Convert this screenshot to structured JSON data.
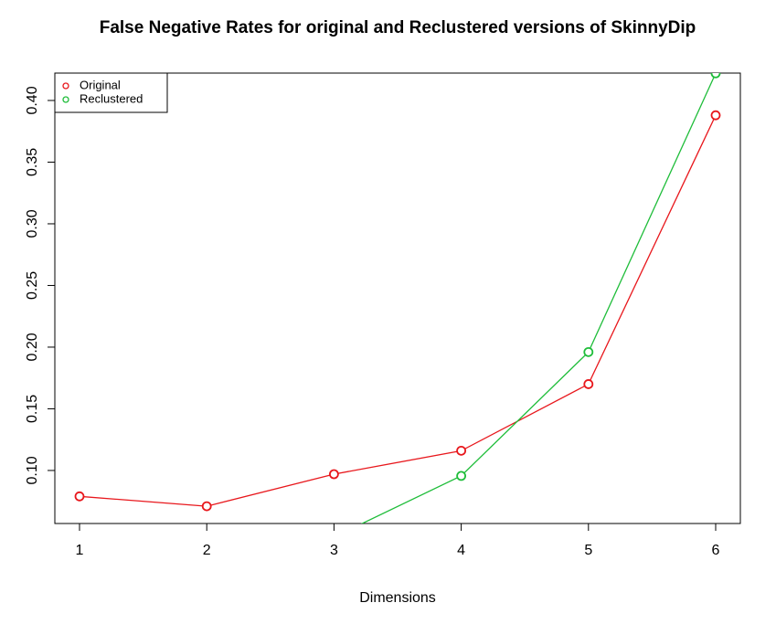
{
  "chart_data": {
    "type": "line",
    "title": "False Negative Rates for original and Reclustered versions of SkinnyDip",
    "x_label": "Dimensions",
    "x": [
      1,
      2,
      3,
      4,
      5,
      6
    ],
    "series": [
      {
        "name": "Original",
        "color": "#e8171c",
        "values": [
          0.079,
          0.071,
          0.097,
          0.116,
          0.17,
          0.388
        ]
      },
      {
        "name": "Reclustered",
        "color": "#1fbd3a",
        "values": [
          null,
          null,
          0.046,
          0.0956,
          0.196,
          0.422
        ]
      }
    ],
    "xlim": [
      0.806,
      6.194
    ],
    "xticks": [
      1,
      2,
      3,
      4,
      5,
      6
    ],
    "ylim": [
      0.057,
      0.4222
    ],
    "yticks": [
      {
        "value": 0.1,
        "label": "0.10"
      },
      {
        "value": 0.15,
        "label": "0.15"
      },
      {
        "value": 0.2,
        "label": "0.20"
      },
      {
        "value": 0.25,
        "label": "0.25"
      },
      {
        "value": 0.3,
        "label": "0.30"
      },
      {
        "value": 0.35,
        "label": "0.35"
      },
      {
        "value": 0.4,
        "label": "0.40"
      }
    ],
    "legend": "top-left"
  }
}
